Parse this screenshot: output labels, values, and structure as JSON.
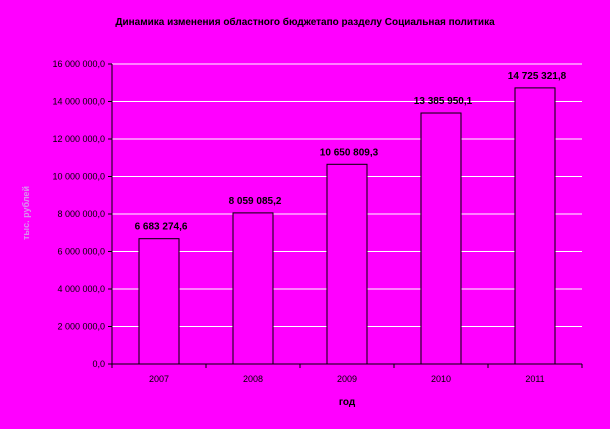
{
  "chart_data": {
    "type": "bar",
    "title": "Динамика изменения областного бюджетапо разделу Социальная политика",
    "xlabel": "год",
    "ylabel": "тыс. рублей",
    "categories": [
      "2007",
      "2008",
      "2009",
      "2010",
      "2011"
    ],
    "values": [
      6683274.6,
      8059085.2,
      10650809.3,
      13385950.1,
      14725321.8
    ],
    "value_labels": [
      "6 683 274,6",
      "8 059 085,2",
      "10 650 809,3",
      "13 385 950,1",
      "14 725 321,8"
    ],
    "ylim": [
      0,
      16000000
    ],
    "yticks": [
      0,
      2000000,
      4000000,
      6000000,
      8000000,
      10000000,
      12000000,
      14000000,
      16000000
    ],
    "ytick_labels": [
      "0,0",
      "2 000 000,0",
      "4 000 000,0",
      "6 000 000,0",
      "8 000 000,0",
      "10 000 000,0",
      "12 000 000,0",
      "14 000 000,0",
      "16 000 000,0"
    ],
    "grid": true,
    "legend": "none",
    "colors": {
      "background": "#ff00ff",
      "bar_fill": "#ff00ff",
      "bar_stroke": "#000000",
      "gridline": "#ffffff",
      "ylabel_text": "#d98ef0"
    }
  }
}
